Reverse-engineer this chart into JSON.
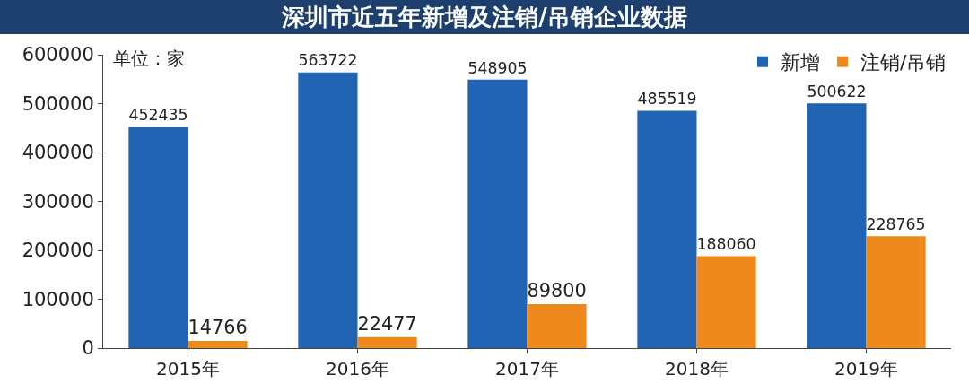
{
  "chart_data": {
    "type": "bar",
    "title": "深圳市近五年新增及注销/吊销企业数据",
    "categories": [
      "2015年",
      "2016年",
      "2017年",
      "2018年",
      "2019年"
    ],
    "series": [
      {
        "name": "新增",
        "color": "#2163b3",
        "values": [
          452435,
          563722,
          548905,
          485519,
          500622
        ]
      },
      {
        "name": "注销/吊销",
        "color": "#f0891c",
        "values": [
          14766,
          22477,
          89800,
          188060,
          228765
        ]
      }
    ],
    "ylim": [
      0,
      600000
    ],
    "yticks": [
      0,
      100000,
      200000,
      300000,
      400000,
      500000,
      600000
    ],
    "grid": false,
    "legend": "top right",
    "data_labels": true,
    "annotations": [
      "单位：家"
    ]
  }
}
